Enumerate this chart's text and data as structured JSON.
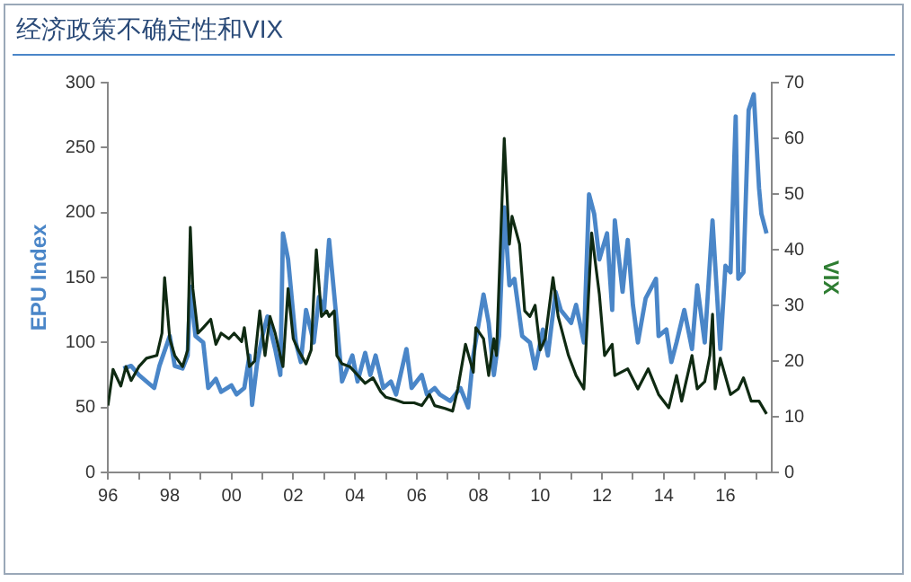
{
  "chart_data": {
    "type": "line",
    "title": "经济政策不确定性和VIX",
    "ylabel": "EPU Index",
    "y2label": "VIX",
    "xlim": [
      "1996-01",
      "2017-07"
    ],
    "xticks": [
      {
        "value": "1996",
        "label": "96"
      },
      {
        "value": "1997",
        "label": null
      },
      {
        "value": "1998",
        "label": "98"
      },
      {
        "value": "1999",
        "label": null
      },
      {
        "value": "2000",
        "label": "00"
      },
      {
        "value": "2001",
        "label": null
      },
      {
        "value": "2002",
        "label": "02"
      },
      {
        "value": "2003",
        "label": null
      },
      {
        "value": "2004",
        "label": "04"
      },
      {
        "value": "2005",
        "label": null
      },
      {
        "value": "2006",
        "label": "06"
      },
      {
        "value": "2007",
        "label": null
      },
      {
        "value": "2008",
        "label": "08"
      },
      {
        "value": "2009",
        "label": null
      },
      {
        "value": "2010",
        "label": "10"
      },
      {
        "value": "2011",
        "label": null
      },
      {
        "value": "2012",
        "label": "12"
      },
      {
        "value": "2013",
        "label": null
      },
      {
        "value": "2014",
        "label": "14"
      },
      {
        "value": "2015",
        "label": null
      },
      {
        "value": "2016",
        "label": "16"
      },
      {
        "value": "2017",
        "label": null
      }
    ],
    "ylim": [
      0,
      300
    ],
    "yticks": [
      0,
      50,
      100,
      150,
      200,
      250,
      300
    ],
    "y2lim": [
      0,
      70
    ],
    "y2ticks": [
      0,
      10,
      20,
      30,
      40,
      50,
      60,
      70
    ],
    "grid": false,
    "legend": false,
    "marker": "none",
    "line_style": "solid",
    "series": [
      {
        "color": "#4a86c8",
        "x": [
          "1996-07",
          "1996-10",
          "1997-01",
          "1997-04",
          "1997-07",
          "1997-09",
          "1998-01",
          "1998-03",
          "1998-06",
          "1998-08",
          "1998-09",
          "1998-11",
          "1999-02",
          "1999-04",
          "1999-07",
          "1999-09",
          "2000-01",
          "2000-03",
          "2000-06",
          "2000-08",
          "2000-09",
          "2000-11",
          "2001-01",
          "2001-03",
          "2001-06",
          "2001-08",
          "2001-09",
          "2001-11",
          "2002-02",
          "2002-04",
          "2002-06",
          "2002-09",
          "2002-11",
          "2003-01",
          "2003-03",
          "2003-06",
          "2003-08",
          "2003-12",
          "2004-02",
          "2004-05",
          "2004-07",
          "2004-09",
          "2004-12",
          "2005-03",
          "2005-05",
          "2005-09",
          "2005-11",
          "2006-03",
          "2006-05",
          "2006-08",
          "2006-10",
          "2007-02",
          "2007-06",
          "2007-09",
          "2007-11",
          "2008-03",
          "2008-05",
          "2008-07",
          "2008-09",
          "2008-11",
          "2009-01",
          "2009-03",
          "2009-06",
          "2009-09",
          "2009-11",
          "2010-02",
          "2010-04",
          "2010-07",
          "2010-09",
          "2011-01",
          "2011-03",
          "2011-06",
          "2011-08",
          "2011-10",
          "2011-12",
          "2012-03",
          "2012-05",
          "2012-06",
          "2012-09",
          "2012-11",
          "2013-01",
          "2013-03",
          "2013-06",
          "2013-10",
          "2013-11",
          "2014-02",
          "2014-04",
          "2014-06",
          "2014-09",
          "2014-12",
          "2015-02",
          "2015-05",
          "2015-08",
          "2015-11",
          "2016-01",
          "2016-03",
          "2016-05",
          "2016-06",
          "2016-08",
          "2016-10",
          "2016-12",
          "2017-02",
          "2017-03",
          "2017-05"
        ],
        "values": [
          80,
          82,
          75,
          70,
          65,
          82,
          105,
          82,
          80,
          90,
          143,
          105,
          100,
          65,
          72,
          62,
          67,
          60,
          65,
          90,
          52,
          85,
          105,
          120,
          95,
          75,
          184,
          164,
          100,
          85,
          125,
          100,
          135,
          125,
          179,
          115,
          70,
          90,
          70,
          92,
          75,
          90,
          65,
          70,
          60,
          95,
          65,
          75,
          60,
          65,
          60,
          55,
          65,
          50,
          90,
          137,
          115,
          75,
          105,
          204,
          144,
          149,
          105,
          100,
          80,
          110,
          90,
          139,
          125,
          115,
          129,
          100,
          214,
          199,
          164,
          184,
          125,
          194,
          139,
          179,
          129,
          100,
          134,
          149,
          105,
          110,
          85,
          100,
          125,
          95,
          144,
          100,
          194,
          95,
          159,
          154,
          274,
          149,
          154,
          279,
          291,
          219,
          199,
          184
        ]
      },
      {
        "color": "#0f2a12",
        "axis": "y2",
        "x": [
          "1996-01",
          "1996-03",
          "1996-06",
          "1996-08",
          "1996-10",
          "1997-01",
          "1997-04",
          "1997-08",
          "1997-10",
          "1997-11",
          "1998-01",
          "1998-03",
          "1998-06",
          "1998-08",
          "1998-09",
          "1998-10",
          "1998-12",
          "1999-02",
          "1999-05",
          "1999-07",
          "1999-09",
          "1999-12",
          "2000-02",
          "2000-05",
          "2000-06",
          "2000-08",
          "2000-10",
          "2000-12",
          "2001-02",
          "2001-04",
          "2001-06",
          "2001-08",
          "2001-09",
          "2001-11",
          "2002-01",
          "2002-03",
          "2002-06",
          "2002-08",
          "2002-09",
          "2002-10",
          "2002-12",
          "2003-02",
          "2003-03",
          "2003-05",
          "2003-06",
          "2003-08",
          "2003-11",
          "2004-01",
          "2004-05",
          "2004-08",
          "2004-11",
          "2005-01",
          "2005-05",
          "2005-08",
          "2005-12",
          "2006-03",
          "2006-06",
          "2006-08",
          "2006-12",
          "2007-03",
          "2007-05",
          "2007-08",
          "2007-11",
          "2007-12",
          "2008-03",
          "2008-05",
          "2008-07",
          "2008-08",
          "2008-11",
          "2009-01",
          "2009-02",
          "2009-05",
          "2009-07",
          "2009-09",
          "2009-11",
          "2010-01",
          "2010-03",
          "2010-06",
          "2010-08",
          "2010-12",
          "2011-03",
          "2011-06",
          "2011-09",
          "2011-12",
          "2012-02",
          "2012-05",
          "2012-06",
          "2012-11",
          "2013-03",
          "2013-07",
          "2013-11",
          "2014-03",
          "2014-06",
          "2014-08",
          "2014-12",
          "2015-02",
          "2015-05",
          "2015-07",
          "2015-08",
          "2015-09",
          "2015-11",
          "2016-03",
          "2016-06",
          "2016-08",
          "2016-11",
          "2017-02",
          "2017-05"
        ],
        "values": [
          12,
          18.5,
          15.5,
          19,
          16.5,
          19,
          20.5,
          21,
          25,
          35,
          24,
          21,
          19,
          22,
          44,
          33,
          25,
          26,
          27.5,
          23,
          25,
          24,
          25,
          23.5,
          26,
          19,
          20,
          29,
          21,
          28,
          25,
          21,
          19,
          33,
          24,
          22,
          19.5,
          22,
          32,
          40,
          28,
          29,
          28,
          29,
          21,
          19.5,
          19,
          18,
          16,
          17,
          14.5,
          13.5,
          13,
          12.5,
          12.5,
          12,
          14,
          12,
          11.5,
          11,
          15,
          23,
          18,
          26,
          24,
          17.4,
          24,
          21,
          60,
          41,
          46,
          41,
          29,
          28,
          30,
          22,
          24,
          35,
          28,
          21,
          17.4,
          15,
          43,
          32,
          21,
          23,
          17.4,
          18.6,
          15,
          18.6,
          14,
          11.6,
          17.4,
          12.8,
          21,
          15,
          16.3,
          21,
          28.4,
          15,
          20.5,
          14,
          15,
          17,
          12.8,
          12.8,
          10.5
        ]
      }
    ]
  }
}
